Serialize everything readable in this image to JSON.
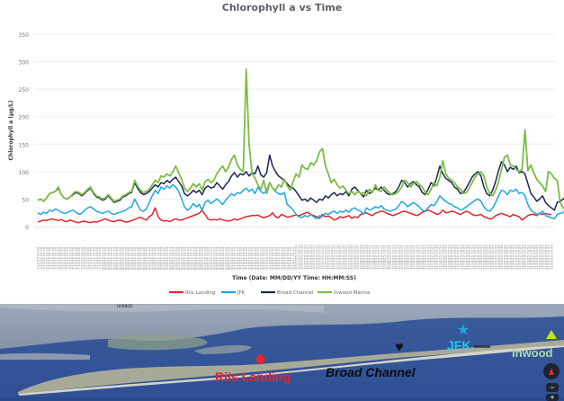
{
  "chart_data": {
    "type": "line",
    "title": "Chlorophyll  a vs Time",
    "xlabel": "Time (Date: MM/DD/YY Time: HH:MM:SS)",
    "ylabel": "Chlorophyll a (µg/L)",
    "ylim": [
      0,
      350
    ],
    "yticks": [
      0,
      50,
      100,
      150,
      200,
      250,
      300,
      350
    ],
    "grid": true,
    "legend_position": "bottom",
    "x_tick_note": "Rotated date-time tick labels (MM/DD/YY HH:MM:SS), one per sample, spanning summer to autumn; individual labels illegible at screenshot resolution",
    "x_tick_samples": [
      "7/12/15 09:16",
      "8/05/15 09:16",
      "8/26/15 09:14",
      "9/16/15 09:19",
      "10/07/15 09:20",
      "10/28/15 09:21",
      "11/18/15 09:53",
      "12/09/15 09:59"
    ],
    "series": [
      {
        "name": "Riis Landing",
        "color": "#e3262b",
        "values": [
          8,
          10,
          12,
          11,
          13,
          14,
          12,
          11,
          13,
          10,
          9,
          12,
          10,
          8,
          7,
          9,
          10,
          8,
          7,
          9,
          8,
          10,
          12,
          14,
          12,
          10,
          9,
          11,
          12,
          10,
          8,
          9,
          11,
          13,
          15,
          17,
          14,
          12,
          18,
          22,
          34,
          18,
          12,
          10,
          11,
          9,
          12,
          14,
          12,
          12,
          14,
          16,
          18,
          20,
          22,
          24,
          30,
          22,
          14,
          12,
          13,
          12,
          14,
          12,
          11,
          10,
          11,
          14,
          12,
          14,
          16,
          18,
          19,
          20,
          20,
          21,
          18,
          16,
          18,
          20,
          25,
          18,
          16,
          22,
          20,
          17,
          18,
          20,
          21,
          20,
          22,
          24,
          26,
          22,
          20,
          18,
          15,
          22,
          18,
          19,
          16,
          12,
          14,
          18,
          16,
          18,
          20,
          15,
          18,
          16,
          22,
          24,
          25,
          22,
          20,
          24,
          26,
          28,
          27,
          24,
          22,
          20,
          22,
          24,
          27,
          28,
          26,
          24,
          22,
          20,
          22,
          26,
          28,
          30,
          28,
          25,
          22,
          24,
          30,
          25,
          26,
          28,
          27,
          24,
          22,
          25,
          28,
          26,
          22,
          20,
          21,
          22,
          18,
          16,
          14,
          15,
          20,
          22,
          24,
          22,
          20,
          18,
          22,
          20,
          18,
          12,
          16,
          20,
          22,
          22,
          20,
          24,
          22,
          24,
          22,
          22
        ]
      },
      {
        "name": "JFK",
        "color": "#1ea8e0",
        "values": [
          25,
          22,
          26,
          24,
          30,
          28,
          32,
          30,
          26,
          24,
          25,
          28,
          30,
          26,
          22,
          24,
          30,
          34,
          36,
          32,
          28,
          26,
          24,
          26,
          28,
          24,
          22,
          24,
          26,
          28,
          30,
          34,
          36,
          50,
          40,
          30,
          28,
          32,
          44,
          56,
          66,
          60,
          72,
          68,
          74,
          70,
          76,
          72,
          64,
          50,
          36,
          30,
          34,
          42,
          36,
          40,
          30,
          44,
          48,
          42,
          46,
          50,
          46,
          40,
          48,
          54,
          60,
          56,
          62,
          60,
          66,
          70,
          64,
          68,
          60,
          72,
          64,
          60,
          66,
          80,
          70,
          64,
          60,
          58,
          62,
          40,
          36,
          30,
          22,
          18,
          16,
          20,
          18,
          22,
          18,
          14,
          20,
          18,
          24,
          22,
          26,
          28,
          24,
          28,
          26,
          30,
          26,
          32,
          34,
          30,
          28,
          22,
          34,
          30,
          32,
          36,
          34,
          38,
          32,
          30,
          28,
          30,
          32,
          38,
          46,
          42,
          36,
          40,
          44,
          40,
          36,
          30,
          28,
          34,
          40,
          38,
          46,
          56,
          50,
          46,
          42,
          40,
          36,
          34,
          30,
          32,
          36,
          40,
          44,
          48,
          50,
          46,
          36,
          30,
          28,
          34,
          44,
          56,
          66,
          64,
          58,
          66,
          64,
          68,
          60,
          62,
          56,
          40,
          30,
          26,
          22,
          24,
          28,
          20,
          18,
          16,
          14,
          22,
          24,
          26,
          28,
          30,
          28,
          32,
          30,
          32
        ]
      },
      {
        "name": "Broad Channel",
        "color": "#1b2653",
        "values": [
          48,
          50,
          46,
          52,
          60,
          62,
          64,
          70,
          58,
          52,
          50,
          54,
          58,
          62,
          60,
          56,
          60,
          66,
          70,
          60,
          54,
          52,
          48,
          50,
          56,
          50,
          44,
          46,
          48,
          54,
          56,
          60,
          62,
          80,
          70,
          62,
          58,
          60,
          64,
          70,
          76,
          72,
          80,
          78,
          84,
          80,
          86,
          90,
          82,
          74,
          60,
          56,
          60,
          66,
          62,
          66,
          58,
          70,
          74,
          70,
          72,
          80,
          74,
          68,
          76,
          82,
          92,
          98,
          90,
          96,
          94,
          100,
          92,
          98,
          96,
          110,
          94,
          90,
          98,
          130,
          110,
          100,
          92,
          88,
          84,
          78,
          72,
          70,
          64,
          56,
          48,
          50,
          46,
          52,
          48,
          44,
          50,
          48,
          56,
          52,
          58,
          62,
          56,
          60,
          58,
          64,
          56,
          68,
          72,
          66,
          60,
          54,
          66,
          60,
          64,
          70,
          66,
          72,
          66,
          60,
          58,
          60,
          64,
          72,
          84,
          80,
          72,
          78,
          82,
          76,
          72,
          62,
          58,
          68,
          80,
          74,
          90,
          110,
          96,
          88,
          84,
          80,
          72,
          68,
          60,
          62,
          70,
          80,
          90,
          96,
          100,
          92,
          72,
          60,
          56,
          66,
          82,
          102,
          118,
          112,
          100,
          108,
          104,
          110,
          98,
          100,
          96,
          78,
          60,
          54,
          46,
          50,
          56,
          44,
          38,
          34,
          30,
          44,
          46,
          50,
          54,
          56,
          52,
          60,
          56,
          58
        ]
      },
      {
        "name": "Inwood Marina",
        "color": "#7cbd42",
        "values": [
          48,
          50,
          46,
          52,
          60,
          62,
          64,
          72,
          58,
          52,
          50,
          54,
          60,
          64,
          62,
          58,
          62,
          68,
          72,
          62,
          56,
          54,
          50,
          52,
          58,
          52,
          46,
          48,
          50,
          56,
          58,
          62,
          64,
          84,
          74,
          66,
          62,
          64,
          68,
          76,
          84,
          80,
          92,
          90,
          96,
          92,
          100,
          110,
          98,
          86,
          70,
          64,
          70,
          78,
          72,
          78,
          66,
          82,
          86,
          80,
          84,
          96,
          104,
          110,
          100,
          108,
          122,
          130,
          112,
          104,
          100,
          286,
          150,
          96,
          88,
          76,
          68,
          84,
          60,
          80,
          70,
          66,
          76,
          72,
          86,
          74,
          66,
          82,
          96,
          90,
          112,
          106,
          104,
          116,
          112,
          120,
          136,
          142,
          110,
          96,
          80,
          86,
          76,
          70,
          74,
          66,
          60,
          64,
          58,
          64,
          60,
          62,
          56,
          68,
          62,
          76,
          66,
          64,
          72,
          66,
          60,
          58,
          60,
          64,
          72,
          84,
          80,
          72,
          78,
          82,
          76,
          72,
          62,
          58,
          68,
          80,
          74,
          90,
          120,
          96,
          88,
          84,
          80,
          72,
          68,
          60,
          62,
          70,
          80,
          90,
          96,
          100,
          92,
          72,
          60,
          56,
          66,
          82,
          104,
          126,
          130,
          112,
          110,
          104,
          100,
          104,
          176,
          102,
          112,
          98,
          86,
          80,
          74,
          64,
          100,
          96,
          88,
          84,
          44,
          34,
          30,
          44,
          46,
          52,
          58,
          62,
          64,
          66,
          60,
          58
        ]
      }
    ]
  },
  "legend": {
    "items": [
      {
        "label": "Riis Landing",
        "color": "#e3262b"
      },
      {
        "label": "JFK",
        "color": "#1ea8e0"
      },
      {
        "label": "Broad Channel",
        "color": "#1b2653"
      },
      {
        "label": "Inwood Marina",
        "color": "#7cbd42"
      }
    ]
  },
  "map": {
    "labels": [
      {
        "text": "Riis Landing",
        "color": "#e3262b",
        "marker": "diamond"
      },
      {
        "text": "Broad Channel",
        "color": "#111111",
        "marker": "heart"
      },
      {
        "text": "JFK",
        "color": "#1ea8e0",
        "marker": "star"
      },
      {
        "text": "Inwood",
        "color": "#9ed8a6",
        "marker": "triangle"
      }
    ],
    "controls": {
      "compass": "compass-icon",
      "zoom_out": "−",
      "zoom_in": "+"
    }
  }
}
